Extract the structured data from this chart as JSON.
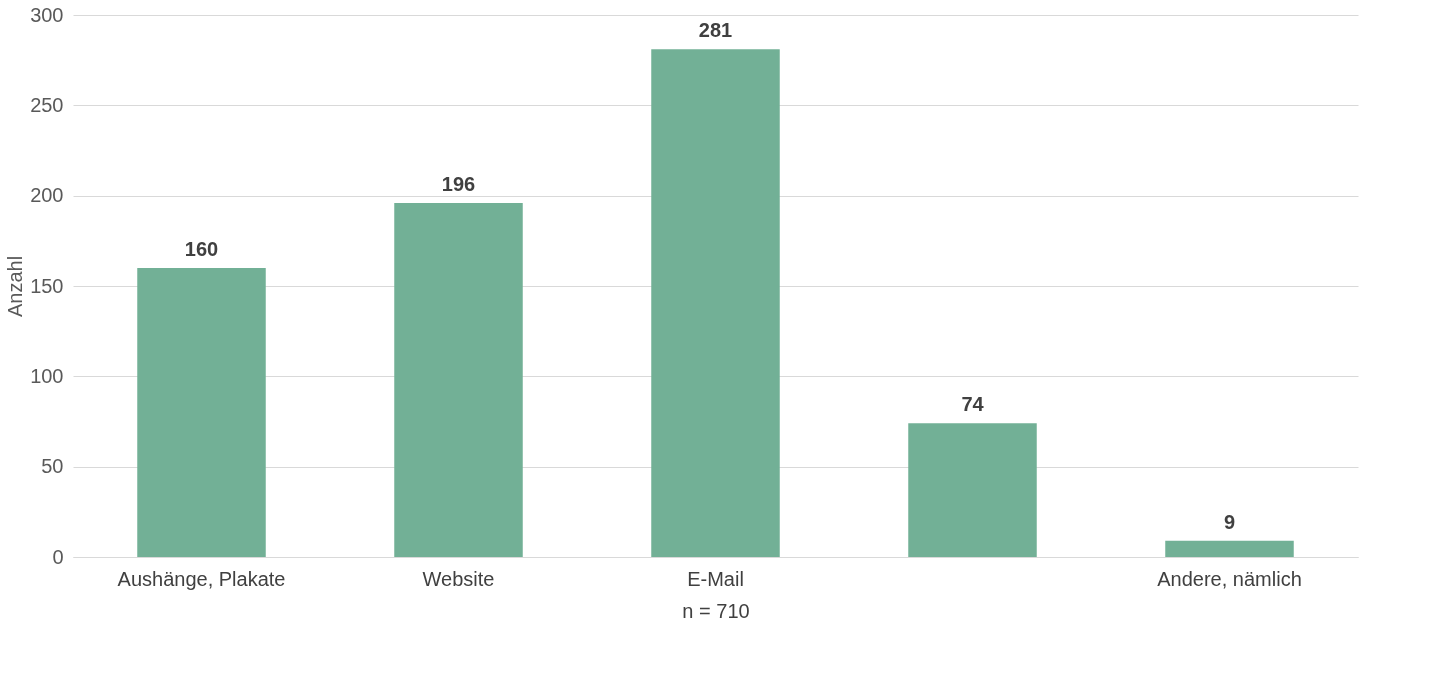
{
  "chart_data": {
    "type": "bar",
    "xlabel": "n = 710",
    "ylabel": "Anzahl",
    "categories": [
      "Aushänge, Plakate",
      "Website",
      "E-Mail",
      null,
      "Andere, nämlich"
    ],
    "values": [
      160,
      196,
      281,
      74,
      9
    ],
    "color": "#72b096",
    "ylim": [
      0,
      300
    ],
    "yticks": [
      0,
      50,
      100,
      150,
      200,
      250,
      300
    ],
    "grid": "y",
    "data_labels": true
  }
}
